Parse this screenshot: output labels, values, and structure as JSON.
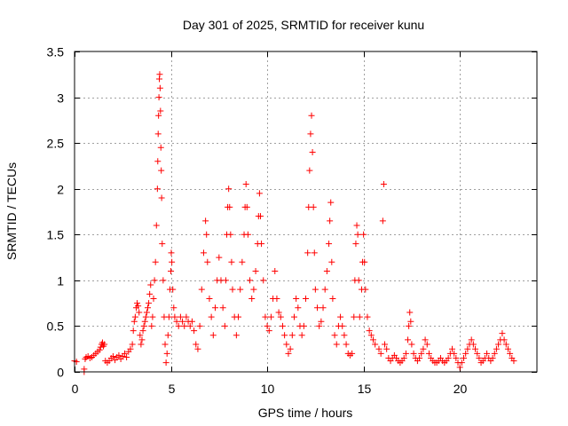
{
  "chart_data": {
    "type": "scatter",
    "title": "Day 301 of 2025, SRMTID for receiver kunu",
    "xlabel": "GPS time / hours",
    "ylabel": "SRMTID / TECUs",
    "xlim": [
      0,
      24
    ],
    "ylim": [
      0,
      3.5
    ],
    "xticks": [
      0,
      5,
      10,
      15,
      20
    ],
    "xtick_labels": [
      "0",
      "5",
      "10",
      "15",
      "20"
    ],
    "yticks": [
      0,
      0.5,
      1,
      1.5,
      2,
      2.5,
      3,
      3.5
    ],
    "ytick_labels": [
      "0",
      "0.5",
      "1",
      "1.5",
      "2",
      "2.5",
      "3",
      "3.5"
    ],
    "grid": true,
    "marker": "plus",
    "color": "#ff0000",
    "series": [
      {
        "name": "kunu",
        "points": [
          [
            0.0,
            0.12
          ],
          [
            0.1,
            0.11
          ],
          [
            0.5,
            0.0
          ],
          [
            0.5,
            0.03
          ],
          [
            0.55,
            0.14
          ],
          [
            0.6,
            0.16
          ],
          [
            0.7,
            0.17
          ],
          [
            0.8,
            0.15
          ],
          [
            0.9,
            0.16
          ],
          [
            1.0,
            0.18
          ],
          [
            1.1,
            0.2
          ],
          [
            1.2,
            0.22
          ],
          [
            1.3,
            0.24
          ],
          [
            1.35,
            0.27
          ],
          [
            1.4,
            0.3
          ],
          [
            1.45,
            0.32
          ],
          [
            1.5,
            0.28
          ],
          [
            1.55,
            0.3
          ],
          [
            1.6,
            0.12
          ],
          [
            1.7,
            0.1
          ],
          [
            1.8,
            0.12
          ],
          [
            1.9,
            0.15
          ],
          [
            2.0,
            0.17
          ],
          [
            2.1,
            0.13
          ],
          [
            2.2,
            0.16
          ],
          [
            2.3,
            0.18
          ],
          [
            2.4,
            0.14
          ],
          [
            2.5,
            0.17
          ],
          [
            2.6,
            0.2
          ],
          [
            2.7,
            0.16
          ],
          [
            2.8,
            0.22
          ],
          [
            2.9,
            0.25
          ],
          [
            3.0,
            0.3
          ],
          [
            3.05,
            0.45
          ],
          [
            3.1,
            0.55
          ],
          [
            3.15,
            0.6
          ],
          [
            3.2,
            0.7
          ],
          [
            3.25,
            0.75
          ],
          [
            3.3,
            0.72
          ],
          [
            3.35,
            0.65
          ],
          [
            3.4,
            0.4
          ],
          [
            3.45,
            0.3
          ],
          [
            3.5,
            0.35
          ],
          [
            3.55,
            0.45
          ],
          [
            3.6,
            0.5
          ],
          [
            3.65,
            0.55
          ],
          [
            3.7,
            0.6
          ],
          [
            3.75,
            0.65
          ],
          [
            3.8,
            0.7
          ],
          [
            3.85,
            0.75
          ],
          [
            3.9,
            0.85
          ],
          [
            3.95,
            0.95
          ],
          [
            4.0,
            0.5
          ],
          [
            4.05,
            0.6
          ],
          [
            4.1,
            0.8
          ],
          [
            4.15,
            1.0
          ],
          [
            4.2,
            1.2
          ],
          [
            4.25,
            1.6
          ],
          [
            4.3,
            2.0
          ],
          [
            4.32,
            2.3
          ],
          [
            4.34,
            2.6
          ],
          [
            4.36,
            2.8
          ],
          [
            4.38,
            3.0
          ],
          [
            4.4,
            3.2
          ],
          [
            4.42,
            3.25
          ],
          [
            4.44,
            3.1
          ],
          [
            4.46,
            2.85
          ],
          [
            4.48,
            2.45
          ],
          [
            4.5,
            2.2
          ],
          [
            4.52,
            1.9
          ],
          [
            4.55,
            1.4
          ],
          [
            4.6,
            1.0
          ],
          [
            4.65,
            0.6
          ],
          [
            4.7,
            0.3
          ],
          [
            4.75,
            0.1
          ],
          [
            4.8,
            0.2
          ],
          [
            4.85,
            0.4
          ],
          [
            4.9,
            0.6
          ],
          [
            4.95,
            0.9
          ],
          [
            5.0,
            1.1
          ],
          [
            5.02,
            1.3
          ],
          [
            5.05,
            1.2
          ],
          [
            5.1,
            0.9
          ],
          [
            5.15,
            0.7
          ],
          [
            5.2,
            0.6
          ],
          [
            5.3,
            0.55
          ],
          [
            5.4,
            0.5
          ],
          [
            5.5,
            0.6
          ],
          [
            5.6,
            0.55
          ],
          [
            5.7,
            0.5
          ],
          [
            5.8,
            0.6
          ],
          [
            5.9,
            0.55
          ],
          [
            6.0,
            0.5
          ],
          [
            6.1,
            0.55
          ],
          [
            6.2,
            0.45
          ],
          [
            6.3,
            0.3
          ],
          [
            6.4,
            0.25
          ],
          [
            6.5,
            0.5
          ],
          [
            6.6,
            0.9
          ],
          [
            6.7,
            1.3
          ],
          [
            6.8,
            1.65
          ],
          [
            6.85,
            1.5
          ],
          [
            6.9,
            1.2
          ],
          [
            7.0,
            0.8
          ],
          [
            7.1,
            0.6
          ],
          [
            7.2,
            0.4
          ],
          [
            7.3,
            0.7
          ],
          [
            7.4,
            1.0
          ],
          [
            7.5,
            1.25
          ],
          [
            7.6,
            1.0
          ],
          [
            7.7,
            0.7
          ],
          [
            7.8,
            0.5
          ],
          [
            7.85,
            1.0
          ],
          [
            7.9,
            1.5
          ],
          [
            7.95,
            1.8
          ],
          [
            8.0,
            2.0
          ],
          [
            8.05,
            1.8
          ],
          [
            8.1,
            1.5
          ],
          [
            8.15,
            1.2
          ],
          [
            8.2,
            0.9
          ],
          [
            8.3,
            0.6
          ],
          [
            8.4,
            0.4
          ],
          [
            8.5,
            0.6
          ],
          [
            8.6,
            0.9
          ],
          [
            8.7,
            1.2
          ],
          [
            8.8,
            1.5
          ],
          [
            8.85,
            1.8
          ],
          [
            8.9,
            2.05
          ],
          [
            8.95,
            1.8
          ],
          [
            9.0,
            1.5
          ],
          [
            9.1,
            1.0
          ],
          [
            9.2,
            0.8
          ],
          [
            9.3,
            0.9
          ],
          [
            9.4,
            1.1
          ],
          [
            9.5,
            1.4
          ],
          [
            9.55,
            1.7
          ],
          [
            9.6,
            1.95
          ],
          [
            9.65,
            1.7
          ],
          [
            9.7,
            1.4
          ],
          [
            9.8,
            1.0
          ],
          [
            9.9,
            0.6
          ],
          [
            10.0,
            0.5
          ],
          [
            10.1,
            0.45
          ],
          [
            10.2,
            0.6
          ],
          [
            10.3,
            0.8
          ],
          [
            10.4,
            1.1
          ],
          [
            10.5,
            0.8
          ],
          [
            10.6,
            0.65
          ],
          [
            10.7,
            0.6
          ],
          [
            10.8,
            0.5
          ],
          [
            10.9,
            0.4
          ],
          [
            11.0,
            0.3
          ],
          [
            11.1,
            0.2
          ],
          [
            11.2,
            0.25
          ],
          [
            11.3,
            0.4
          ],
          [
            11.4,
            0.6
          ],
          [
            11.5,
            0.8
          ],
          [
            11.6,
            0.7
          ],
          [
            11.7,
            0.5
          ],
          [
            11.8,
            0.4
          ],
          [
            11.9,
            0.5
          ],
          [
            12.0,
            0.8
          ],
          [
            12.1,
            1.3
          ],
          [
            12.15,
            1.8
          ],
          [
            12.2,
            2.2
          ],
          [
            12.25,
            2.6
          ],
          [
            12.3,
            2.8
          ],
          [
            12.35,
            2.4
          ],
          [
            12.4,
            1.8
          ],
          [
            12.45,
            1.3
          ],
          [
            12.5,
            0.9
          ],
          [
            12.6,
            0.7
          ],
          [
            12.7,
            0.5
          ],
          [
            12.8,
            0.55
          ],
          [
            12.9,
            0.7
          ],
          [
            13.0,
            0.9
          ],
          [
            13.1,
            1.1
          ],
          [
            13.2,
            1.4
          ],
          [
            13.25,
            1.65
          ],
          [
            13.3,
            1.85
          ],
          [
            13.35,
            1.2
          ],
          [
            13.4,
            0.8
          ],
          [
            13.5,
            0.4
          ],
          [
            13.6,
            0.3
          ],
          [
            13.7,
            0.5
          ],
          [
            13.8,
            0.6
          ],
          [
            13.9,
            0.5
          ],
          [
            14.0,
            0.4
          ],
          [
            14.1,
            0.3
          ],
          [
            14.2,
            0.2
          ],
          [
            14.3,
            0.18
          ],
          [
            14.4,
            0.2
          ],
          [
            14.5,
            0.6
          ],
          [
            14.55,
            1.0
          ],
          [
            14.6,
            1.4
          ],
          [
            14.65,
            1.6
          ],
          [
            14.7,
            1.5
          ],
          [
            14.75,
            1.0
          ],
          [
            14.8,
            0.6
          ],
          [
            14.9,
            0.9
          ],
          [
            14.95,
            1.2
          ],
          [
            15.0,
            1.5
          ],
          [
            15.05,
            1.2
          ],
          [
            15.1,
            0.9
          ],
          [
            15.2,
            0.6
          ],
          [
            15.3,
            0.45
          ],
          [
            15.4,
            0.4
          ],
          [
            15.5,
            0.35
          ],
          [
            15.6,
            0.3
          ],
          [
            15.8,
            0.25
          ],
          [
            15.9,
            0.2
          ],
          [
            16.0,
            1.65
          ],
          [
            16.05,
            2.05
          ],
          [
            16.1,
            0.3
          ],
          [
            16.2,
            0.25
          ],
          [
            16.3,
            0.15
          ],
          [
            16.4,
            0.12
          ],
          [
            16.5,
            0.15
          ],
          [
            16.6,
            0.18
          ],
          [
            16.7,
            0.15
          ],
          [
            16.8,
            0.12
          ],
          [
            16.9,
            0.1
          ],
          [
            17.0,
            0.12
          ],
          [
            17.1,
            0.15
          ],
          [
            17.2,
            0.2
          ],
          [
            17.3,
            0.35
          ],
          [
            17.35,
            0.5
          ],
          [
            17.4,
            0.65
          ],
          [
            17.45,
            0.55
          ],
          [
            17.5,
            0.3
          ],
          [
            17.6,
            0.2
          ],
          [
            17.7,
            0.15
          ],
          [
            17.8,
            0.12
          ],
          [
            17.9,
            0.15
          ],
          [
            18.0,
            0.2
          ],
          [
            18.1,
            0.25
          ],
          [
            18.2,
            0.35
          ],
          [
            18.3,
            0.3
          ],
          [
            18.4,
            0.2
          ],
          [
            18.5,
            0.15
          ],
          [
            18.6,
            0.12
          ],
          [
            18.7,
            0.1
          ],
          [
            18.8,
            0.1
          ],
          [
            18.9,
            0.12
          ],
          [
            19.0,
            0.15
          ],
          [
            19.1,
            0.12
          ],
          [
            19.2,
            0.1
          ],
          [
            19.3,
            0.12
          ],
          [
            19.4,
            0.15
          ],
          [
            19.5,
            0.2
          ],
          [
            19.6,
            0.25
          ],
          [
            19.7,
            0.2
          ],
          [
            19.8,
            0.15
          ],
          [
            19.9,
            0.1
          ],
          [
            20.0,
            0.05
          ],
          [
            20.1,
            0.1
          ],
          [
            20.2,
            0.15
          ],
          [
            20.3,
            0.2
          ],
          [
            20.4,
            0.25
          ],
          [
            20.5,
            0.3
          ],
          [
            20.6,
            0.35
          ],
          [
            20.7,
            0.3
          ],
          [
            20.8,
            0.25
          ],
          [
            20.9,
            0.2
          ],
          [
            21.0,
            0.15
          ],
          [
            21.1,
            0.1
          ],
          [
            21.2,
            0.12
          ],
          [
            21.3,
            0.15
          ],
          [
            21.4,
            0.2
          ],
          [
            21.5,
            0.15
          ],
          [
            21.6,
            0.12
          ],
          [
            21.7,
            0.15
          ],
          [
            21.8,
            0.2
          ],
          [
            21.9,
            0.25
          ],
          [
            22.0,
            0.3
          ],
          [
            22.1,
            0.35
          ],
          [
            22.2,
            0.42
          ],
          [
            22.3,
            0.35
          ],
          [
            22.4,
            0.3
          ],
          [
            22.5,
            0.25
          ],
          [
            22.6,
            0.2
          ],
          [
            22.7,
            0.15
          ],
          [
            22.8,
            0.12
          ]
        ]
      }
    ]
  }
}
